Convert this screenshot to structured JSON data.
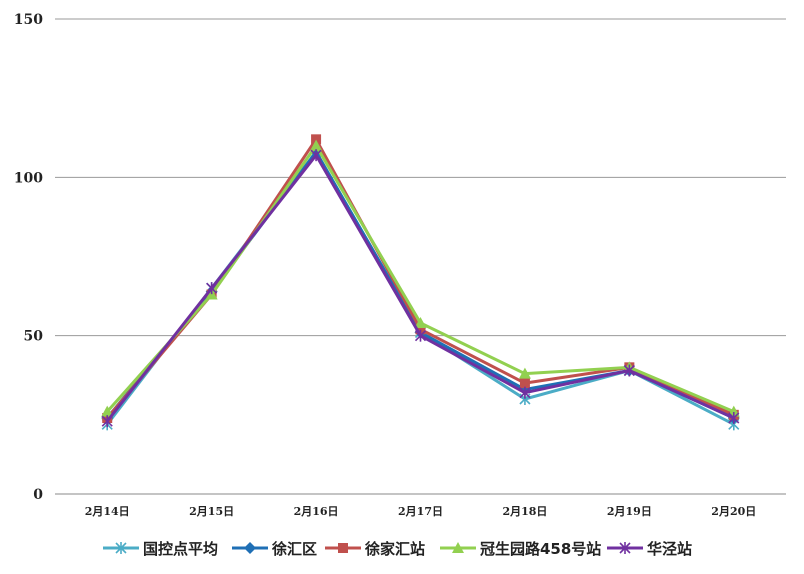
{
  "chart_data": {
    "type": "line",
    "categories": [
      "2月14日",
      "2月15日",
      "2月16日",
      "2月17日",
      "2月18日",
      "2月19日",
      "2月20日"
    ],
    "ylim": [
      0,
      150
    ],
    "yticks": [
      0,
      50,
      100,
      150
    ],
    "grid": true,
    "legend_position": "bottom",
    "series": [
      {
        "name": "国控点平均",
        "color": "#4bacc6",
        "marker": "star",
        "values": [
          22,
          65,
          108,
          51,
          30,
          39,
          22
        ]
      },
      {
        "name": "徐汇区",
        "color": "#1f6fb5",
        "marker": "diamond",
        "values": [
          24,
          64,
          108,
          51,
          33,
          39,
          24
        ]
      },
      {
        "name": "徐家汇站",
        "color": "#c0504d",
        "marker": "square",
        "values": [
          24,
          63,
          112,
          52,
          35,
          40,
          25
        ]
      },
      {
        "name": "冠生园路458号站",
        "color": "#92d050",
        "marker": "triangle",
        "values": [
          26,
          63,
          110,
          54,
          38,
          40,
          26
        ]
      },
      {
        "name": "华泾站",
        "color": "#7030a0",
        "marker": "star",
        "values": [
          23,
          65,
          107,
          50,
          32,
          39,
          24
        ]
      }
    ]
  }
}
